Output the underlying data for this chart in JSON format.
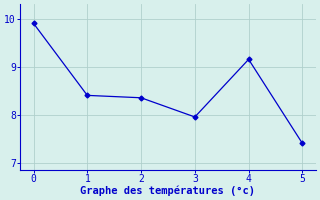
{
  "x": [
    0,
    1,
    2,
    3,
    4,
    5
  ],
  "y": [
    9.9,
    8.4,
    8.35,
    7.95,
    9.15,
    7.4
  ],
  "line_color": "#0000cc",
  "marker": "D",
  "marker_size": 2.5,
  "line_width": 0.9,
  "xlabel": "Graphe des températures (°c)",
  "xlabel_color": "#0000cc",
  "xlabel_fontsize": 7.5,
  "background_color": "#d8f0ec",
  "grid_color": "#b0d0cc",
  "tick_color": "#0000cc",
  "tick_labelcolor": "#0000cc",
  "tick_labelsize": 7.0,
  "xlim": [
    -0.25,
    5.25
  ],
  "ylim": [
    6.85,
    10.3
  ],
  "yticks": [
    7,
    8,
    9,
    10
  ],
  "xticks": [
    0,
    1,
    2,
    3,
    4,
    5
  ],
  "spine_color": "#4444aa",
  "axis_color": "#0000cc"
}
